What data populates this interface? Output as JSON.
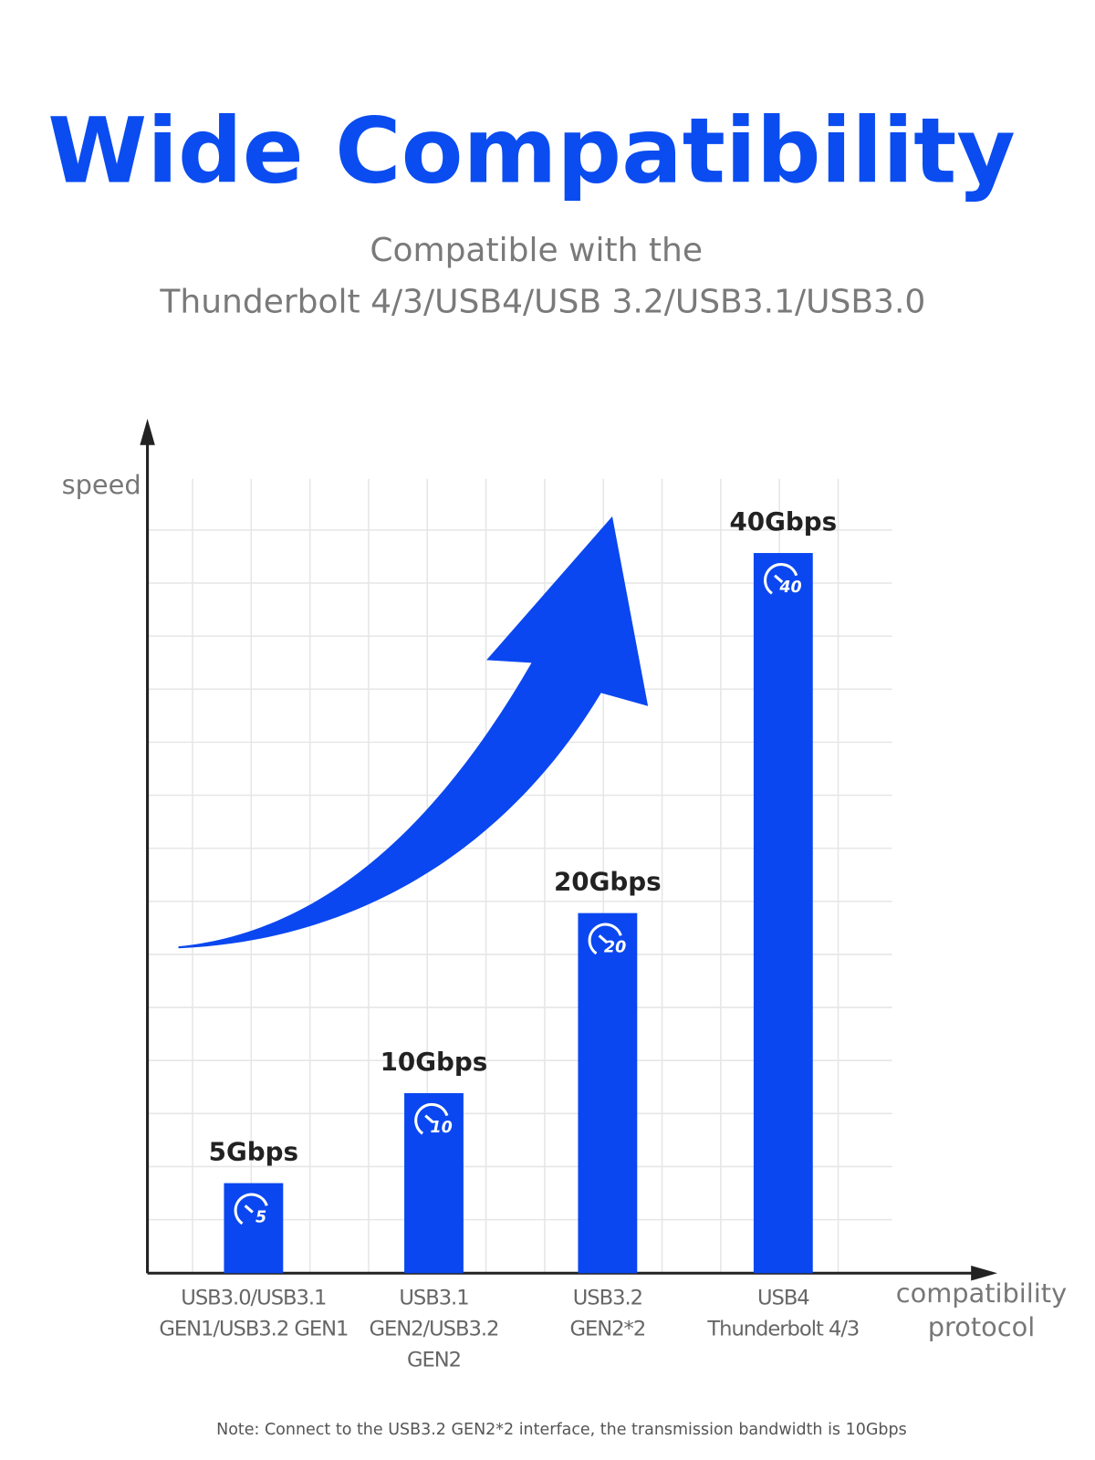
{
  "chart_data": {
    "type": "bar",
    "title": "Wide Compatibility",
    "subtitle": [
      "Compatible with the",
      "Thunderbolt 4/3/USB4/USB 3.2/USB3.1/USB3.0"
    ],
    "y_label": "speed",
    "x_label": [
      "compatibility",
      "protocol"
    ],
    "categories": [
      [
        "USB3.0/USB3.1",
        "GEN1/USB3.2 GEN1"
      ],
      [
        "USB3.1",
        "GEN2/USB3.2",
        "GEN2"
      ],
      [
        "USB3.2",
        "GEN2*2"
      ],
      [
        "USB4",
        "Thunderbolt 4/3"
      ]
    ],
    "values": [
      5,
      10,
      20,
      40
    ],
    "value_labels": [
      "5Gbps",
      "10Gbps",
      "20Gbps",
      "40Gbps"
    ],
    "color": "#0a47f0",
    "grid": true,
    "note": "Note: Connect to the USB3.2 GEN2*2 interface, the transmission bandwidth is 10Gbps"
  }
}
